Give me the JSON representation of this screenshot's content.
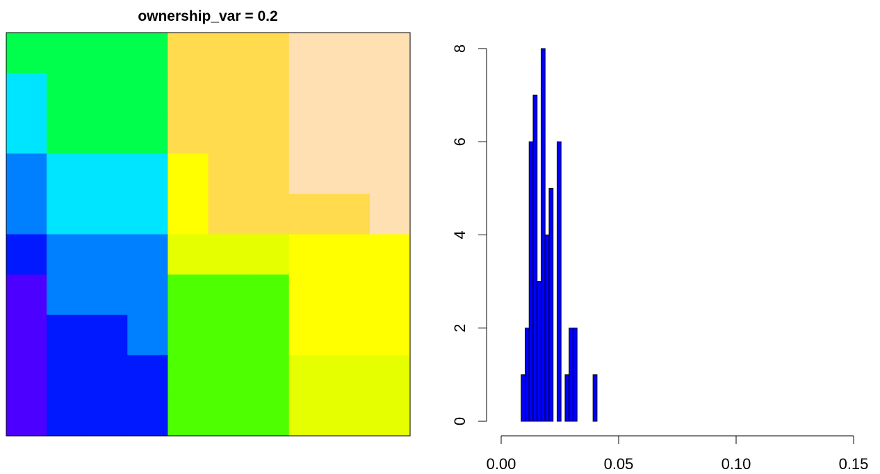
{
  "chart_data": [
    {
      "type": "heatmap",
      "title": "ownership_var = 0.2",
      "grid_shape": [
        10,
        10
      ],
      "cells": [
        [
          "#00ff4d",
          "#00ff4d",
          "#00ff4d",
          "#00ff4d",
          "#ffdb4d",
          "#ffdb4d",
          "#ffdb4d",
          "#ffe0b3",
          "#ffe0b3",
          "#ffe0b3"
        ],
        [
          "#00e5ff",
          "#00ff4d",
          "#00ff4d",
          "#00ff4d",
          "#ffdb4d",
          "#ffdb4d",
          "#ffdb4d",
          "#ffe0b3",
          "#ffe0b3",
          "#ffe0b3"
        ],
        [
          "#00e5ff",
          "#00ff4d",
          "#00ff4d",
          "#00ff4d",
          "#ffdb4d",
          "#ffdb4d",
          "#ffdb4d",
          "#ffe0b3",
          "#ffe0b3",
          "#ffe0b3"
        ],
        [
          "#0080ff",
          "#00e5ff",
          "#00e5ff",
          "#00e5ff",
          "#ffff00",
          "#ffdb4d",
          "#ffdb4d",
          "#ffe0b3",
          "#ffe0b3",
          "#ffe0b3"
        ],
        [
          "#0080ff",
          "#00e5ff",
          "#00e5ff",
          "#00e5ff",
          "#ffff00",
          "#ffdb4d",
          "#ffdb4d",
          "#ffdb4d",
          "#ffdb4d",
          "#ffe0b3"
        ],
        [
          "#0019ff",
          "#0080ff",
          "#0080ff",
          "#0080ff",
          "#e6ff00",
          "#e6ff00",
          "#e6ff00",
          "#ffff00",
          "#ffff00",
          "#ffff00"
        ],
        [
          "#4c00ff",
          "#0080ff",
          "#0080ff",
          "#0080ff",
          "#4dff00",
          "#4dff00",
          "#4dff00",
          "#ffff00",
          "#ffff00",
          "#ffff00"
        ],
        [
          "#4c00ff",
          "#0019ff",
          "#0019ff",
          "#0080ff",
          "#4dff00",
          "#4dff00",
          "#4dff00",
          "#ffff00",
          "#ffff00",
          "#ffff00"
        ],
        [
          "#4c00ff",
          "#0019ff",
          "#0019ff",
          "#0019ff",
          "#4dff00",
          "#4dff00",
          "#4dff00",
          "#e6ff00",
          "#e6ff00",
          "#e6ff00"
        ],
        [
          "#4c00ff",
          "#0019ff",
          "#0019ff",
          "#0019ff",
          "#4dff00",
          "#4dff00",
          "#4dff00",
          "#e6ff00",
          "#e6ff00",
          "#e6ff00"
        ]
      ]
    },
    {
      "type": "bar",
      "title": "",
      "xlabel": "",
      "ylabel": "",
      "bin_width": 0.0017,
      "x_start": 0.0085,
      "counts": [
        1,
        2,
        6,
        7,
        3,
        8,
        4,
        5,
        0,
        6,
        0,
        1,
        2,
        2,
        0,
        0,
        0,
        0,
        1
      ],
      "xlim": [
        0,
        0.15
      ],
      "ylim": [
        0,
        8
      ],
      "x_ticks": [
        "0.00",
        "0.05",
        "0.10",
        "0.15"
      ],
      "x_tick_values": [
        0,
        0.05,
        0.1,
        0.15
      ],
      "y_ticks": [
        "0",
        "2",
        "4",
        "6",
        "8"
      ],
      "y_tick_values": [
        0,
        2,
        4,
        6,
        8
      ],
      "bar_color": "#0000ff",
      "grid": false
    }
  ]
}
